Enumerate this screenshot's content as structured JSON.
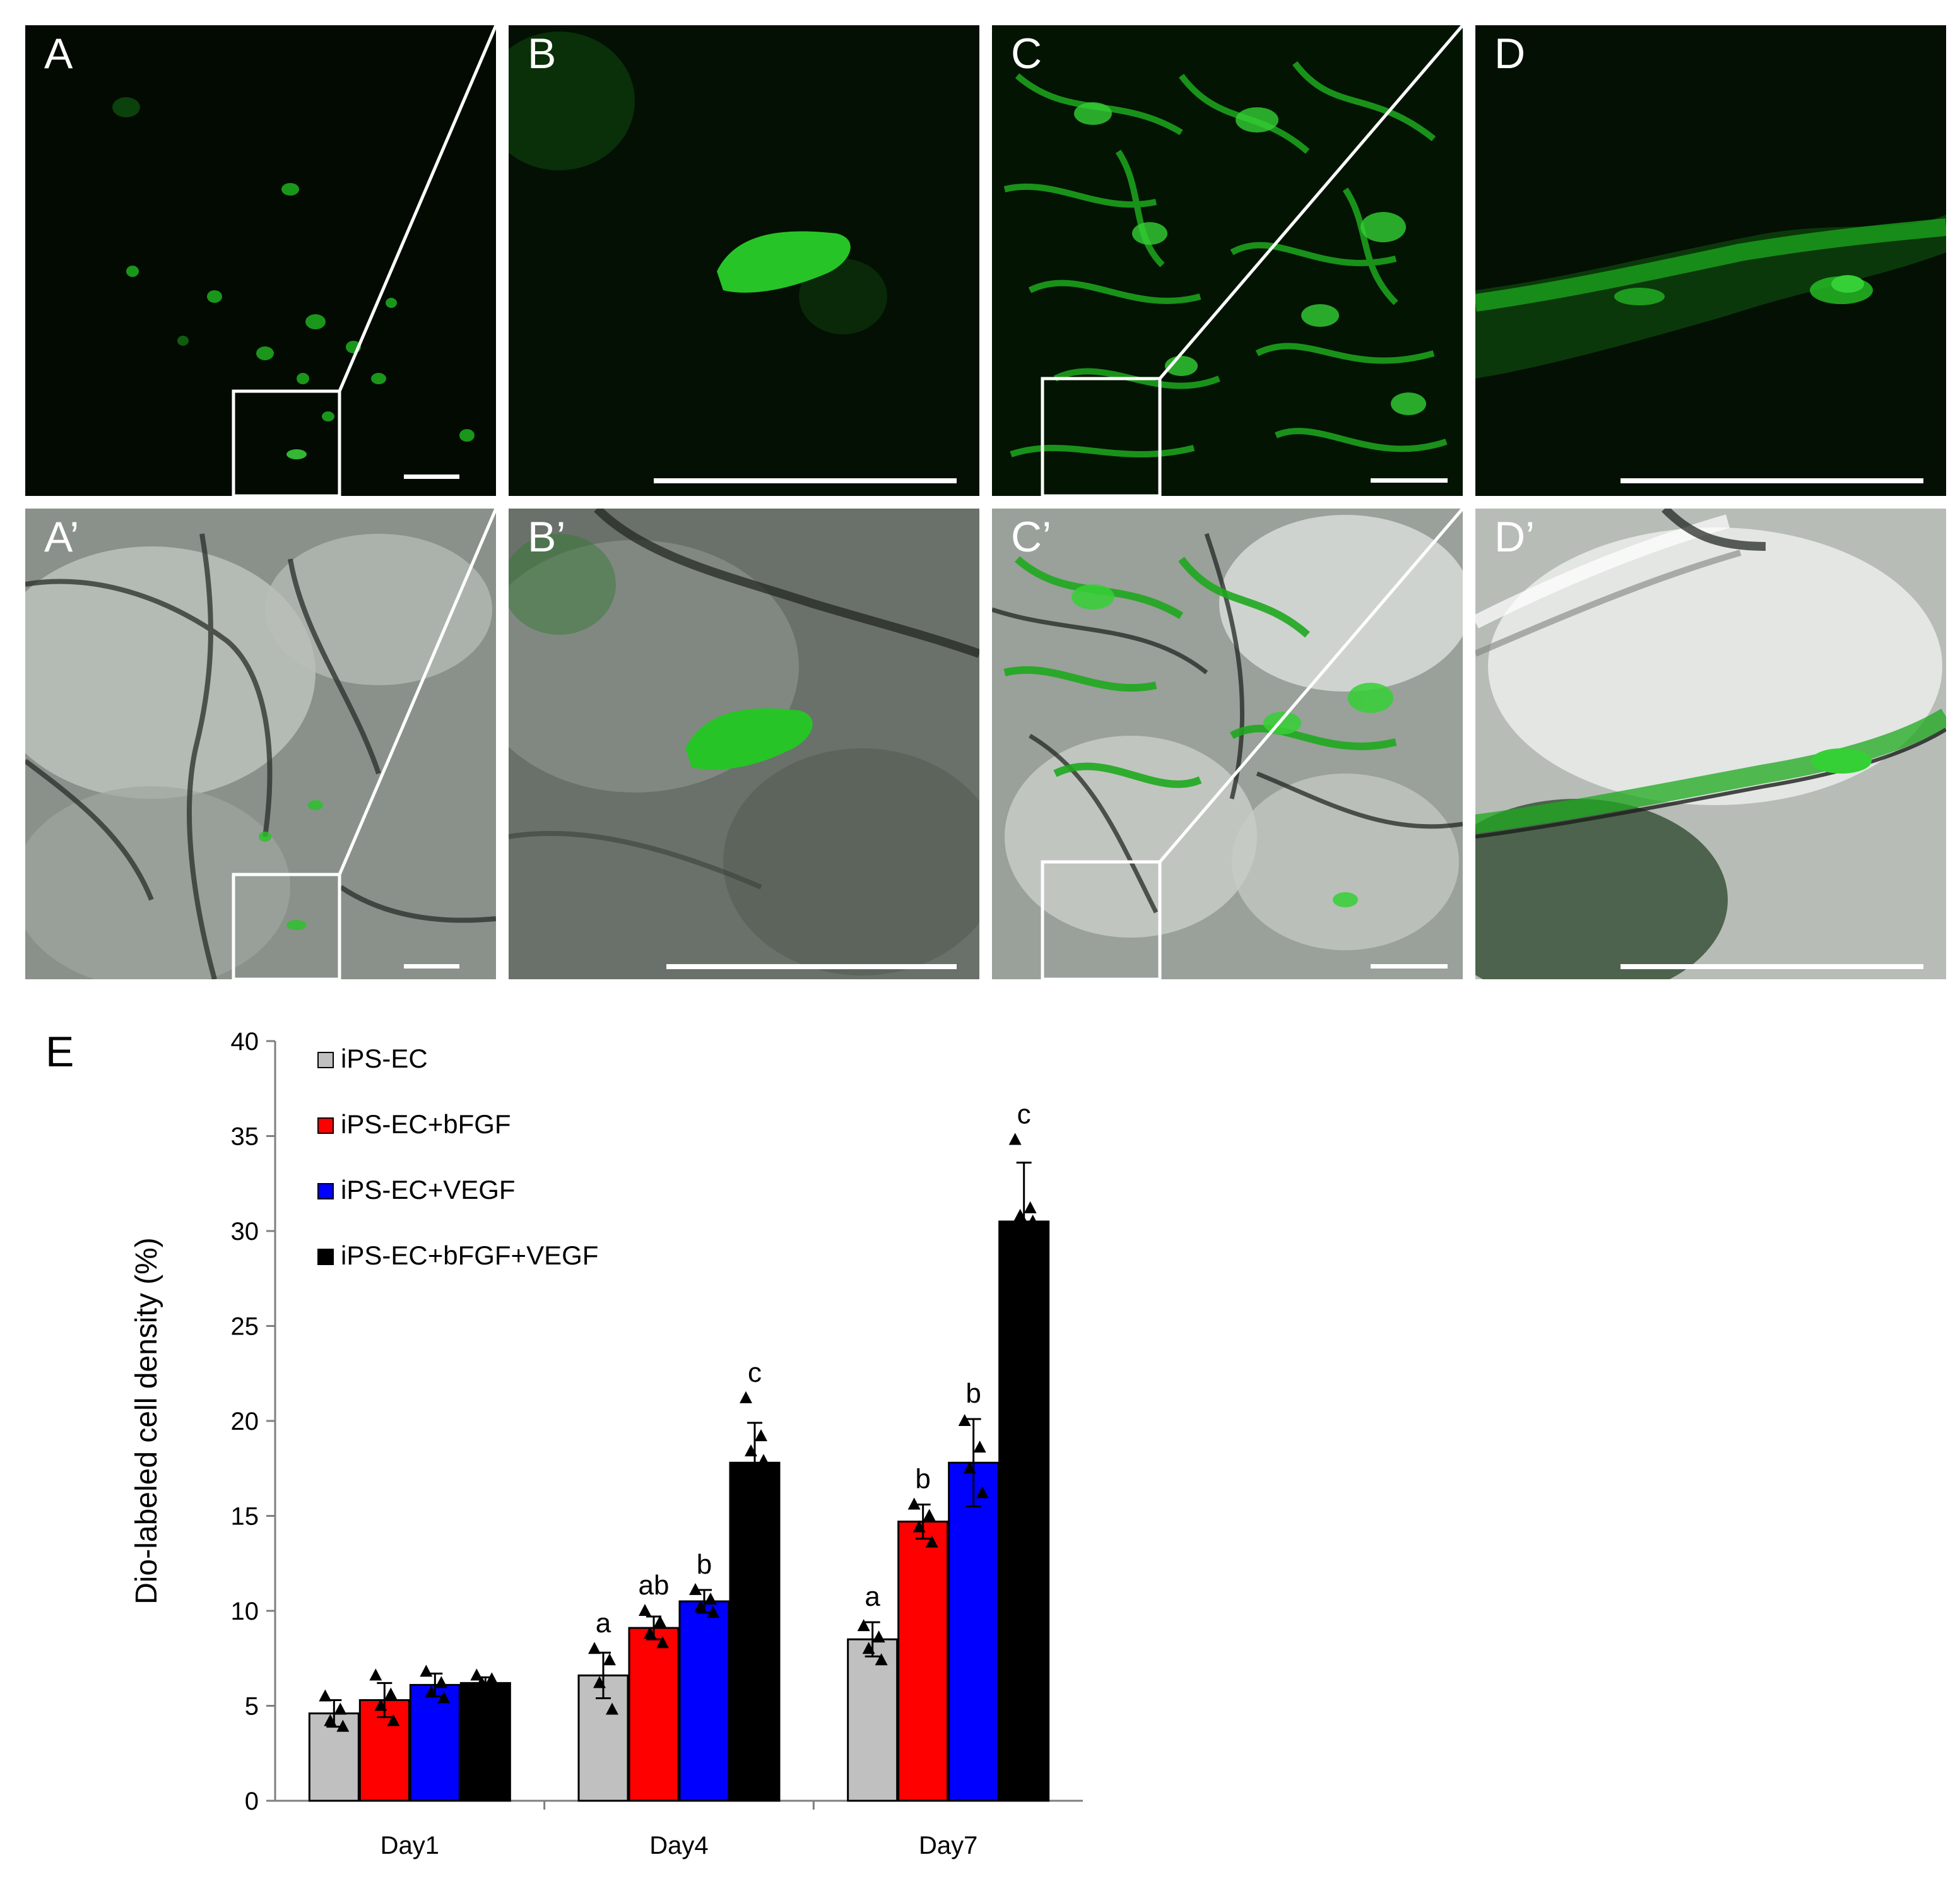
{
  "panels": {
    "A": {
      "label": "A"
    },
    "B": {
      "label": "B"
    },
    "C": {
      "label": "C"
    },
    "D": {
      "label": "D"
    },
    "A2": {
      "label": "A’"
    },
    "B2": {
      "label": "B’"
    },
    "C2": {
      "label": "C’"
    },
    "D2": {
      "label": "D’"
    }
  },
  "chart_data": {
    "type": "bar",
    "panel_label": "E",
    "categories": [
      "Day1",
      "Day4",
      "Day7"
    ],
    "series": [
      {
        "name": "iPS-EC",
        "color": "#c0c0c0",
        "values": [
          4.6,
          6.6,
          8.5
        ],
        "errors": [
          0.7,
          1.2,
          0.9
        ],
        "letters": [
          "",
          "a",
          "a"
        ],
        "points": [
          [
            5.5,
            4.8,
            4.2,
            3.9
          ],
          [
            8.0,
            7.4,
            6.2,
            4.8
          ],
          [
            9.2,
            8.6,
            8.0,
            7.4
          ]
        ]
      },
      {
        "name": "iPS-EC+bFGF",
        "color": "#ff0000",
        "values": [
          5.3,
          9.1,
          14.7
        ],
        "errors": [
          0.9,
          0.6,
          0.9
        ],
        "letters": [
          "",
          "ab",
          "b"
        ],
        "points": [
          [
            6.6,
            5.6,
            5.0,
            4.2
          ],
          [
            10.0,
            9.4,
            8.8,
            8.3
          ],
          [
            15.6,
            15.0,
            14.4,
            13.6
          ]
        ]
      },
      {
        "name": "iPS-EC+VEGF",
        "color": "#0000ff",
        "values": [
          6.1,
          10.5,
          17.8
        ],
        "errors": [
          0.6,
          0.6,
          2.3
        ],
        "letters": [
          "",
          "b",
          "b"
        ],
        "points": [
          [
            6.8,
            6.2,
            5.7,
            5.4
          ],
          [
            11.1,
            10.6,
            10.2,
            9.9
          ],
          [
            20.0,
            18.6,
            17.5,
            16.2
          ]
        ]
      },
      {
        "name": "iPS-EC+bFGF+VEGF",
        "color": "#000000",
        "values": [
          6.2,
          17.8,
          30.5
        ],
        "errors": [
          0.3,
          2.1,
          3.1
        ],
        "letters": [
          "",
          "c",
          "c"
        ],
        "points": [
          [
            6.6,
            6.4,
            6.2,
            6.0
          ],
          [
            21.2,
            19.2,
            18.4,
            17.9
          ],
          [
            34.8,
            31.2,
            30.8,
            30.5
          ]
        ]
      }
    ],
    "ylabel": "Dio-labeled cell density (%)",
    "xlabel": "",
    "ylim": [
      0,
      40
    ],
    "yticks": [
      0,
      5,
      10,
      15,
      20,
      25,
      30,
      35,
      40
    ],
    "grid": false,
    "legend": "top-left"
  }
}
